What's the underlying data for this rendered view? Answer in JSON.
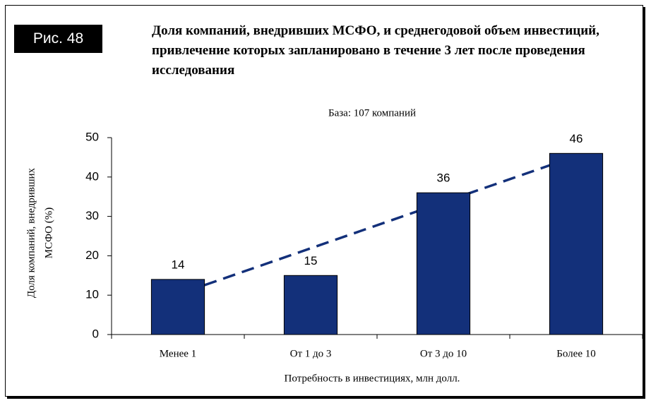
{
  "figure_label": "Рис. 48",
  "chart_data": {
    "type": "bar",
    "title": "Доля компаний, внедривших МСФО, и среднегодовой объем инвестиций, привлечение которых запланировано в течение 3 лет после проведения исследования",
    "subtitle": "База: 107 компаний",
    "y_label": [
      "Доля компаний, внедривших",
      "МСФО (%)"
    ],
    "x_label": "Потребность в инвестициях, млн долл.",
    "categories": [
      "Менее 1",
      "От 1 до 3",
      "От 3 до 10",
      "Более 10"
    ],
    "values": [
      14,
      15,
      36,
      46
    ],
    "color": "#13307a",
    "trendline": "linear",
    "trendline_color": "#13307a",
    "ylim": [
      0,
      50
    ],
    "yticks": [
      0,
      10,
      20,
      30,
      40,
      50
    ],
    "grid": false
  }
}
